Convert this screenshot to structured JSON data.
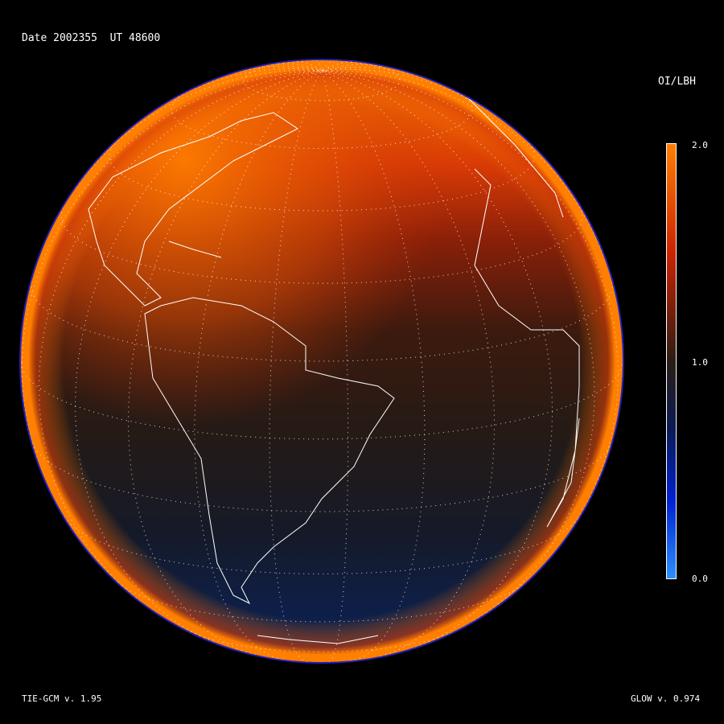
{
  "header": {
    "title": "Date 2002355  UT 48600"
  },
  "colorbar": {
    "label": "OI/LBH",
    "ticks": [
      "2.0",
      "1.0",
      "0.0"
    ],
    "range": [
      0.0,
      2.0
    ],
    "colors": {
      "max": "#ff7f00",
      "high": "#cc2200",
      "mid": "#2a1c14",
      "low": "#0a1a50",
      "lower": "#0020d0",
      "min": "#2a90ff"
    }
  },
  "footer": {
    "model": "TIE-GCM v. 1.95",
    "glow": "GLOW v. 0.974"
  },
  "map": {
    "projection": "orthographic",
    "grid": "dotted",
    "coastlines": true,
    "limb_color": "#ff7f00",
    "edge_color": "#2020c0"
  }
}
